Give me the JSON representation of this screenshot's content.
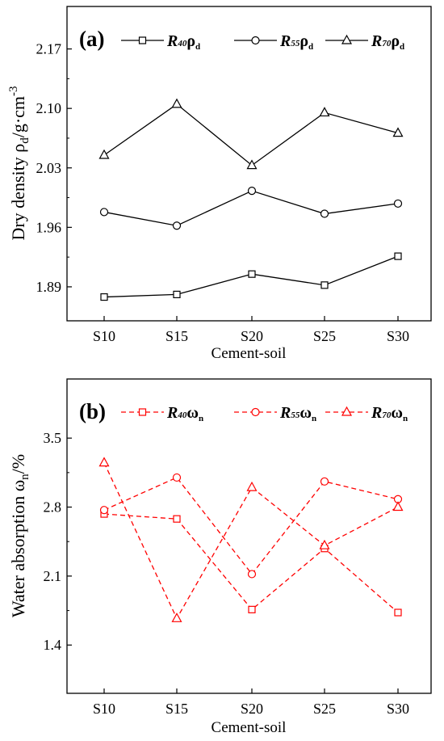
{
  "chart_data": [
    {
      "type": "line",
      "panel_label": "(a)",
      "categories": [
        "S10",
        "S15",
        "S20",
        "S25",
        "S30"
      ],
      "xlabel": "Cement-soil",
      "ylabel": {
        "main": "Dry density ρ",
        "sub": "d",
        "unit": "/g·cm",
        "sup": "-3"
      },
      "yticks": [
        "1.89",
        "1.96",
        "2.03",
        "2.10",
        "2.17"
      ],
      "ylim": [
        1.89,
        2.17
      ],
      "ylim_padded": [
        1.85,
        2.22
      ],
      "line_color": "#000000",
      "line_style": "solid",
      "legend_position": "top",
      "series": [
        {
          "name": "R40ρd",
          "name_parts": [
            "R",
            "40",
            "ρ",
            "d"
          ],
          "marker": "square",
          "values": [
            1.878,
            1.881,
            1.905,
            1.892,
            1.926
          ]
        },
        {
          "name": "R55ρd",
          "name_parts": [
            "R",
            "55",
            "ρ",
            "d"
          ],
          "marker": "circle",
          "values": [
            1.978,
            1.962,
            2.003,
            1.976,
            1.988
          ]
        },
        {
          "name": "R70ρd",
          "name_parts": [
            "R",
            "70",
            "ρ",
            "d"
          ],
          "marker": "triangle",
          "values": [
            2.045,
            2.105,
            2.033,
            2.095,
            2.071
          ]
        }
      ]
    },
    {
      "type": "line",
      "panel_label": "(b)",
      "categories": [
        "S10",
        "S15",
        "S20",
        "S25",
        "S30"
      ],
      "xlabel": "Cement-soil",
      "ylabel": {
        "main": "Water absorption ω",
        "sub": "n",
        "unit": "/%",
        "sup": ""
      },
      "yticks": [
        "1.4",
        "2.1",
        "2.8",
        "3.5"
      ],
      "ylim": [
        1.4,
        3.5
      ],
      "ylim_padded": [
        0.91,
        4.1
      ],
      "line_color": "#ff0000",
      "line_style": "dashed",
      "legend_position": "top",
      "series": [
        {
          "name": "R40ωn",
          "name_parts": [
            "R",
            "40",
            "ω",
            "n"
          ],
          "marker": "square",
          "values": [
            2.73,
            2.68,
            1.76,
            2.38,
            1.73
          ]
        },
        {
          "name": "R55ωn",
          "name_parts": [
            "R",
            "55",
            "ω",
            "n"
          ],
          "marker": "circle",
          "values": [
            2.77,
            3.1,
            2.12,
            3.06,
            2.88
          ]
        },
        {
          "name": "R70ωn",
          "name_parts": [
            "R",
            "70",
            "ω",
            "n"
          ],
          "marker": "triangle",
          "values": [
            3.25,
            1.67,
            3.0,
            2.41,
            2.8
          ]
        }
      ]
    }
  ]
}
